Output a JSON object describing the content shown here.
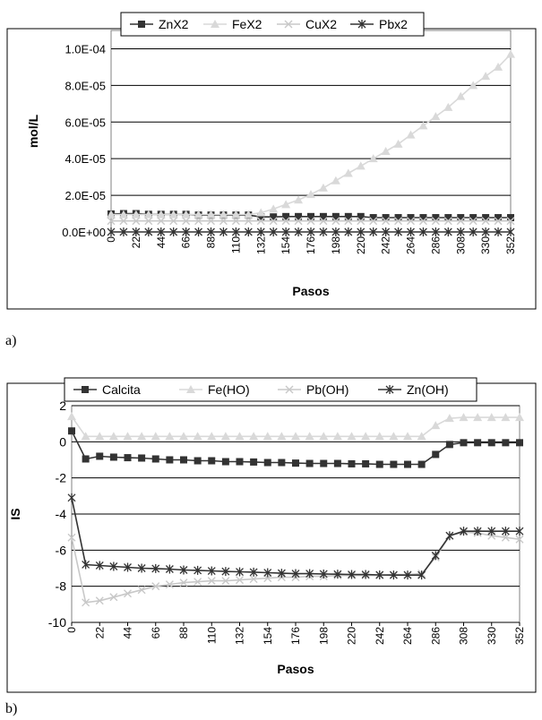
{
  "chart_data": [
    {
      "type": "line",
      "panel_label": "a)",
      "xlabel": "Pasos",
      "ylabel": "mol/L",
      "x_ticks": [
        "0",
        "22",
        "44",
        "66",
        "88",
        "110",
        "132",
        "154",
        "176",
        "198",
        "220",
        "242",
        "264",
        "286",
        "308",
        "330",
        "352"
      ],
      "y_ticks": [
        "0.0E+00",
        "2.0E-05",
        "4.0E-05",
        "6.0E-05",
        "8.0E-05",
        "1.0E-04"
      ],
      "xlim": [
        0,
        352
      ],
      "ylim": [
        0,
        0.00011
      ],
      "grid": "horizontal",
      "legend_position": "top",
      "x": [
        0,
        11,
        22,
        33,
        44,
        55,
        66,
        77,
        88,
        99,
        110,
        121,
        132,
        143,
        154,
        165,
        176,
        187,
        198,
        209,
        220,
        231,
        242,
        253,
        264,
        275,
        286,
        297,
        308,
        319,
        330,
        341,
        352
      ],
      "series": [
        {
          "name": "ZnX2",
          "color": "#333333",
          "marker": "square",
          "values": [
            9.8e-06,
            1e-05,
            1e-05,
            9.6e-06,
            9.6e-06,
            9.6e-06,
            9.6e-06,
            9.2e-06,
            9.2e-06,
            9.2e-06,
            9.2e-06,
            9.2e-06,
            8.2e-06,
            8.2e-06,
            8.4e-06,
            8.4e-06,
            8.4e-06,
            8.4e-06,
            8.4e-06,
            8.4e-06,
            8.4e-06,
            7.8e-06,
            7.8e-06,
            7.8e-06,
            7.8e-06,
            7.8e-06,
            7.8e-06,
            7.8e-06,
            7.8e-06,
            7.8e-06,
            7.8e-06,
            7.8e-06,
            7.8e-06
          ]
        },
        {
          "name": "FeX2",
          "color": "#d9d9d9",
          "marker": "triangle",
          "values": [
            9.5e-06,
            9.5e-06,
            9.5e-06,
            9.5e-06,
            9.5e-06,
            9.5e-06,
            9.5e-06,
            9.5e-06,
            9.5e-06,
            9.5e-06,
            9.5e-06,
            9.5e-06,
            1.05e-05,
            1.25e-05,
            1.5e-05,
            1.75e-05,
            2.05e-05,
            2.4e-05,
            2.8e-05,
            3.2e-05,
            3.6e-05,
            4e-05,
            4.4e-05,
            4.8e-05,
            5.3e-05,
            5.8e-05,
            6.3e-05,
            6.8e-05,
            7.4e-05,
            8e-05,
            8.5e-05,
            9e-05,
            9.7e-05
          ]
        },
        {
          "name": "CuX2",
          "color": "#c8c8c8",
          "marker": "x",
          "values": [
            6e-06,
            6e-06,
            6e-06,
            6e-06,
            6e-06,
            6e-06,
            6e-06,
            6e-06,
            6e-06,
            6e-06,
            6e-06,
            6e-06,
            6e-06,
            6e-06,
            6e-06,
            6e-06,
            6e-06,
            6e-06,
            6e-06,
            6e-06,
            6e-06,
            6e-06,
            6e-06,
            6e-06,
            6e-06,
            6e-06,
            6e-06,
            6e-06,
            6e-06,
            6e-06,
            6e-06,
            6e-06,
            6e-06
          ]
        },
        {
          "name": "Pbx2",
          "color": "#333333",
          "marker": "star",
          "values": [
            0,
            0,
            0,
            0,
            0,
            0,
            0,
            0,
            0,
            0,
            0,
            0,
            0,
            0,
            0,
            0,
            0,
            0,
            0,
            0,
            0,
            0,
            0,
            0,
            0,
            0,
            0,
            0,
            0,
            0,
            0,
            0,
            0
          ]
        }
      ]
    },
    {
      "type": "line",
      "panel_label": "b)",
      "xlabel": "Pasos",
      "ylabel": "IS",
      "x_ticks": [
        "0",
        "22",
        "44",
        "66",
        "88",
        "110",
        "132",
        "154",
        "176",
        "198",
        "220",
        "242",
        "264",
        "286",
        "308",
        "330",
        "352"
      ],
      "y_ticks": [
        "2",
        "0",
        "-2",
        "-4",
        "-6",
        "-8",
        "-10"
      ],
      "xlim": [
        0,
        352
      ],
      "ylim": [
        -10,
        2
      ],
      "grid": "horizontal",
      "legend_position": "top",
      "x": [
        0,
        11,
        22,
        33,
        44,
        55,
        66,
        77,
        88,
        99,
        110,
        121,
        132,
        143,
        154,
        165,
        176,
        187,
        198,
        209,
        220,
        231,
        242,
        253,
        264,
        275,
        286,
        297,
        308,
        319,
        330,
        341,
        352
      ],
      "series": [
        {
          "name": "Calcita",
          "color": "#333333",
          "marker": "square",
          "values": [
            0.6,
            -0.95,
            -0.8,
            -0.85,
            -0.88,
            -0.9,
            -0.95,
            -1.0,
            -1.0,
            -1.05,
            -1.05,
            -1.1,
            -1.1,
            -1.12,
            -1.15,
            -1.15,
            -1.18,
            -1.2,
            -1.2,
            -1.2,
            -1.22,
            -1.22,
            -1.25,
            -1.25,
            -1.25,
            -1.25,
            -0.7,
            -0.15,
            -0.05,
            -0.05,
            -0.05,
            -0.05,
            -0.05
          ]
        },
        {
          "name": "Fe(HO)",
          "color": "#d9d9d9",
          "marker": "triangle",
          "values": [
            1.4,
            0.3,
            0.3,
            0.3,
            0.3,
            0.3,
            0.3,
            0.3,
            0.3,
            0.3,
            0.3,
            0.3,
            0.3,
            0.3,
            0.3,
            0.3,
            0.3,
            0.3,
            0.3,
            0.3,
            0.3,
            0.3,
            0.3,
            0.3,
            0.3,
            0.3,
            0.9,
            1.3,
            1.35,
            1.35,
            1.35,
            1.35,
            1.35
          ]
        },
        {
          "name": "Pb(OH)",
          "color": "#c8c8c8",
          "marker": "x",
          "values": [
            -5.3,
            -8.9,
            -8.8,
            -8.6,
            -8.4,
            -8.2,
            -8.0,
            -7.9,
            -7.8,
            -7.75,
            -7.7,
            -7.7,
            -7.65,
            -7.6,
            -7.55,
            -7.5,
            -7.5,
            -7.45,
            -7.45,
            -7.4,
            -7.4,
            -7.4,
            -7.4,
            -7.35,
            -7.35,
            -7.3,
            -6.4,
            -5.2,
            -5.0,
            -5.05,
            -5.2,
            -5.3,
            -5.4
          ]
        },
        {
          "name": "Zn(OH)",
          "color": "#333333",
          "marker": "star",
          "values": [
            -3.1,
            -6.8,
            -6.85,
            -6.9,
            -6.95,
            -7.0,
            -7.02,
            -7.05,
            -7.1,
            -7.12,
            -7.15,
            -7.18,
            -7.2,
            -7.22,
            -7.25,
            -7.28,
            -7.3,
            -7.3,
            -7.32,
            -7.33,
            -7.35,
            -7.35,
            -7.37,
            -7.38,
            -7.38,
            -7.38,
            -6.3,
            -5.2,
            -4.95,
            -4.95,
            -4.95,
            -4.95,
            -4.95
          ]
        }
      ]
    }
  ]
}
